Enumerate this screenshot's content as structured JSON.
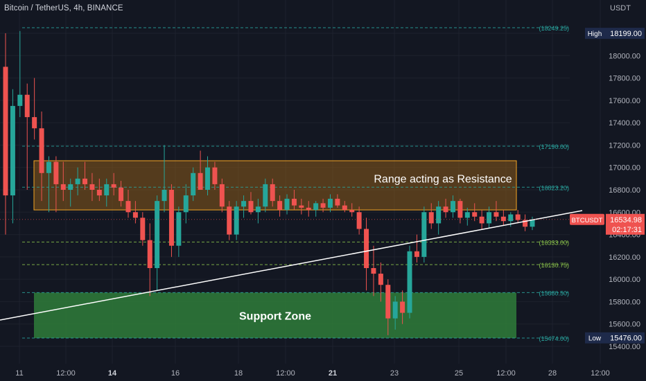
{
  "header": {
    "symbol_title": "Bitcoin / TetherUS, 4h, BINANCE",
    "currency": "USDT"
  },
  "colors": {
    "background": "#131722",
    "up": "#26a69a",
    "down": "#ef5350",
    "grid": "#1e222d",
    "resistance_fill": "#8a5a1a",
    "resistance_border": "#f5a623",
    "support_fill": "#2f7d3a",
    "hline": "#2aa7a0",
    "trendline": "#ffffff"
  },
  "chart_data": {
    "type": "candlestick",
    "title": "Bitcoin / TetherUS, 4h, BINANCE",
    "ylim": [
      15300,
      18600
    ],
    "y_ticks": [
      "15400.00",
      "15600.00",
      "15800.00",
      "16000.00",
      "16200.00",
      "16400.00",
      "16600.00",
      "16800.00",
      "17000.00",
      "17200.00",
      "17400.00",
      "17600.00",
      "17800.00",
      "18000.00",
      "18200.00"
    ],
    "x_ticks": [
      "11",
      "12:00",
      "14",
      "16",
      "18",
      "12:00",
      "21",
      "23",
      "25",
      "12:00",
      "28",
      "12:00"
    ],
    "x_ticks_bold": [
      "14",
      "21"
    ],
    "price_levels": [
      {
        "label": "(18249.25)",
        "value": 18249.25,
        "color": "#2aa7a0"
      },
      {
        "label": "(17190.00)",
        "value": 17190.0,
        "color": "#2aa7a0"
      },
      {
        "label": "(16823.20)",
        "value": 16823.2,
        "color": "#2aa7a0"
      },
      {
        "label": "(16333.00)",
        "value": 16333.0,
        "color": "#8bc34a"
      },
      {
        "label": "(16130.75)",
        "value": 16130.75,
        "color": "#8bc34a"
      },
      {
        "label": "(15880.50)",
        "value": 15880.5,
        "color": "#2aa7a0"
      },
      {
        "label": "(15474.00)",
        "value": 15474.0,
        "color": "#2aa7a0"
      }
    ],
    "high_label": {
      "tag": "High",
      "value": "18199.00",
      "price": 18199
    },
    "low_label": {
      "tag": "Low",
      "value": "15476.00",
      "price": 15476
    },
    "current_price": {
      "tag": "BTCUSDT",
      "value": "16534.98",
      "price": 16534.98,
      "countdown": "02:17:31"
    },
    "resistance_zone": {
      "label": "Range acting as Resistance",
      "top": 17060,
      "bottom": 16620
    },
    "support_zone": {
      "label": "Support Zone",
      "top": 15880,
      "bottom": 15474
    },
    "candles": [
      [
        17900,
        18200,
        16400,
        16750
      ],
      [
        16750,
        17700,
        16500,
        17550
      ],
      [
        17550,
        18220,
        17450,
        17650
      ],
      [
        17650,
        17750,
        16800,
        17450
      ],
      [
        17450,
        17800,
        17250,
        17350
      ],
      [
        17350,
        17500,
        16700,
        16950
      ],
      [
        16950,
        17100,
        16600,
        17050
      ],
      [
        17050,
        17100,
        16600,
        16850
      ],
      [
        16850,
        17050,
        16700,
        16800
      ],
      [
        16800,
        16900,
        16650,
        16850
      ],
      [
        16850,
        17000,
        16750,
        16900
      ],
      [
        16900,
        17050,
        16800,
        16850
      ],
      [
        16850,
        16950,
        16700,
        16800
      ],
      [
        16800,
        16900,
        16700,
        16750
      ],
      [
        16750,
        16900,
        16650,
        16850
      ],
      [
        16850,
        16950,
        16750,
        16820
      ],
      [
        16820,
        16880,
        16650,
        16700
      ],
      [
        16700,
        16800,
        16550,
        16600
      ],
      [
        16600,
        16700,
        16500,
        16550
      ],
      [
        16550,
        16600,
        16300,
        16350
      ],
      [
        16350,
        16500,
        15850,
        16100
      ],
      [
        16100,
        16750,
        15900,
        16700
      ],
      [
        16700,
        17200,
        16600,
        16800
      ],
      [
        16800,
        16850,
        16200,
        16300
      ],
      [
        16300,
        16650,
        16200,
        16600
      ],
      [
        16600,
        16850,
        16500,
        16750
      ],
      [
        16750,
        17000,
        16700,
        16950
      ],
      [
        16950,
        17150,
        16800,
        16800
      ],
      [
        16800,
        17100,
        16750,
        17000
      ],
      [
        17000,
        17050,
        16800,
        16850
      ],
      [
        16850,
        16900,
        16600,
        16650
      ],
      [
        16650,
        16700,
        16350,
        16400
      ],
      [
        16400,
        16700,
        16350,
        16650
      ],
      [
        16650,
        16750,
        16550,
        16700
      ],
      [
        16700,
        16780,
        16580,
        16600
      ],
      [
        16600,
        16720,
        16500,
        16650
      ],
      [
        16650,
        16900,
        16600,
        16850
      ],
      [
        16850,
        16900,
        16650,
        16700
      ],
      [
        16700,
        16750,
        16560,
        16620
      ],
      [
        16620,
        16760,
        16580,
        16720
      ],
      [
        16720,
        16800,
        16620,
        16660
      ],
      [
        16660,
        16720,
        16580,
        16640
      ],
      [
        16640,
        16700,
        16560,
        16620
      ],
      [
        16620,
        16700,
        16560,
        16680
      ],
      [
        16680,
        16720,
        16600,
        16640
      ],
      [
        16640,
        16760,
        16600,
        16720
      ],
      [
        16720,
        16760,
        16640,
        16660
      ],
      [
        16660,
        16700,
        16600,
        16620
      ],
      [
        16620,
        16680,
        16560,
        16600
      ],
      [
        16600,
        16650,
        16400,
        16450
      ],
      [
        16450,
        16550,
        15900,
        16100
      ],
      [
        16100,
        16300,
        15850,
        16050
      ],
      [
        16050,
        16150,
        15800,
        15950
      ],
      [
        15950,
        16000,
        15500,
        15650
      ],
      [
        15650,
        15850,
        15550,
        15800
      ],
      [
        15800,
        15900,
        15600,
        15700
      ],
      [
        15700,
        16300,
        15650,
        16250
      ],
      [
        16250,
        16400,
        16150,
        16200
      ],
      [
        16200,
        16650,
        16150,
        16600
      ],
      [
        16600,
        16680,
        16450,
        16500
      ],
      [
        16500,
        16700,
        16400,
        16650
      ],
      [
        16650,
        16720,
        16550,
        16600
      ],
      [
        16600,
        16750,
        16550,
        16700
      ],
      [
        16700,
        16720,
        16500,
        16550
      ],
      [
        16550,
        16640,
        16480,
        16600
      ],
      [
        16600,
        16680,
        16520,
        16560
      ],
      [
        16560,
        16620,
        16450,
        16500
      ],
      [
        16500,
        16650,
        16460,
        16600
      ],
      [
        16600,
        16700,
        16520,
        16560
      ],
      [
        16560,
        16620,
        16480,
        16520
      ],
      [
        16520,
        16600,
        16470,
        16580
      ],
      [
        16580,
        16620,
        16500,
        16530
      ],
      [
        16530,
        16580,
        16430,
        16470
      ],
      [
        16470,
        16560,
        16440,
        16535
      ]
    ]
  }
}
